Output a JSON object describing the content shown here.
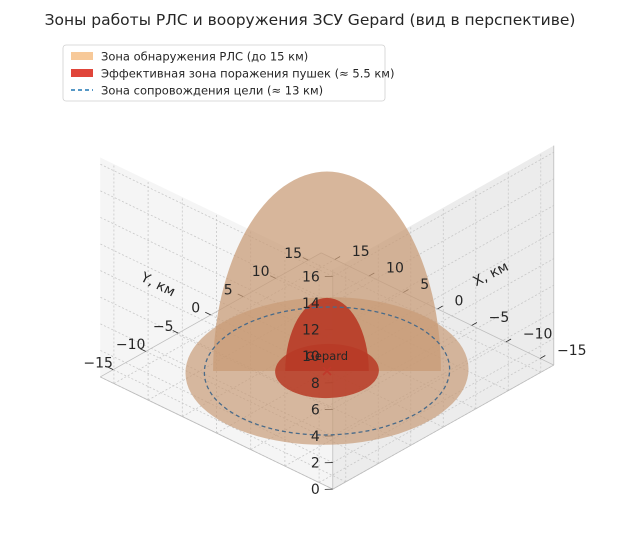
{
  "chart_data": {
    "type": "3d-surface",
    "title": "Зоны работы РЛС и вооружения ЗСУ Gepard (вид в перспективе)",
    "xlabel": "X, км",
    "ylabel": "Y, км",
    "zlabel": "",
    "xlim": [
      -17,
      17
    ],
    "ylim": [
      -17,
      17
    ],
    "zlim": [
      0,
      16.5
    ],
    "xticks": [
      -15,
      -10,
      -5,
      0,
      5,
      10,
      15
    ],
    "yticks": [
      -15,
      -10,
      -5,
      0,
      5,
      10,
      15
    ],
    "zticks": [
      0,
      2,
      4,
      6,
      8,
      10,
      12,
      14,
      16
    ],
    "xtick_labels": [
      "−15",
      "−10",
      "−5",
      "0",
      "5",
      "10",
      "15"
    ],
    "ytick_labels": [
      "−15",
      "−10",
      "−5",
      "0",
      "5",
      "10",
      "15"
    ],
    "ztick_labels": [
      "0",
      "2",
      "4",
      "6",
      "8",
      "10",
      "12",
      "14",
      "16"
    ],
    "grid": true,
    "legend_position": "upper-left",
    "series": [
      {
        "name": "Зона обнаружения РЛС (до 15 км)",
        "shape": "hemisphere",
        "radius_km": 15,
        "color": "#f7c999"
      },
      {
        "name": "Эффективная зона поражения пушек (≈ 5.5 км)",
        "shape": "hemisphere",
        "radius_km": 5.5,
        "color": "#e0453a"
      },
      {
        "name": "Зона сопровождения цели (≈ 13 км)",
        "shape": "circle",
        "radius_km": 13,
        "color": "#1f77b4",
        "linestyle": "dashed"
      }
    ],
    "annotations": [
      {
        "text": "Gepard",
        "x": 0,
        "y": 0,
        "z": 0
      }
    ],
    "marker": {
      "x": 0,
      "y": 0,
      "z": 0,
      "symbol": "x",
      "color": "#c0392b"
    }
  }
}
